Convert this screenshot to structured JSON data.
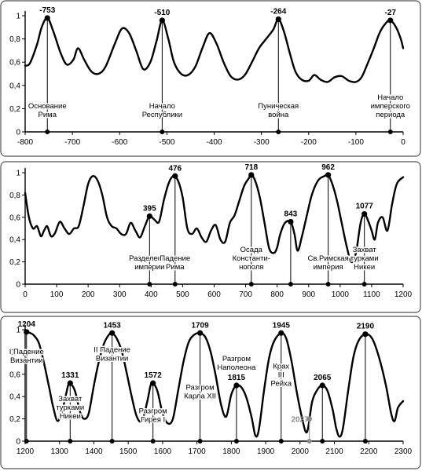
{
  "chart_data": [
    {
      "type": "line",
      "xlim": [
        -800,
        0
      ],
      "ylim": [
        0,
        1
      ],
      "xticks": [
        -800,
        -700,
        -600,
        -500,
        -400,
        -300,
        -200,
        -100,
        0
      ],
      "yticks": [
        0,
        0.2,
        0.4,
        0.6,
        0.8,
        1
      ],
      "ytick_labels": [
        "0",
        "0,2",
        "0,4",
        "0,6",
        "0,8",
        "1"
      ],
      "series": [
        {
          "x": [
            -800,
            -790,
            -775,
            -765,
            -753,
            -740,
            -725,
            -712,
            -698,
            -688,
            -675,
            -660,
            -645,
            -630,
            -610,
            -595,
            -580,
            -565,
            -550,
            -535,
            -522,
            -510,
            -497,
            -485,
            -470,
            -455,
            -440,
            -425,
            -410,
            -395,
            -380,
            -365,
            -350,
            -335,
            -320,
            -305,
            -290,
            -275,
            -264,
            -252,
            -240,
            -228,
            -215,
            -200,
            -188,
            -175,
            -160,
            -145,
            -130,
            -115,
            -100,
            -88,
            -76,
            -62,
            -50,
            -38,
            -27,
            -15,
            -5,
            0
          ],
          "y": [
            0.57,
            0.59,
            0.75,
            0.9,
            0.98,
            0.86,
            0.68,
            0.58,
            0.62,
            0.72,
            0.62,
            0.52,
            0.5,
            0.56,
            0.76,
            0.89,
            0.85,
            0.7,
            0.54,
            0.6,
            0.78,
            0.96,
            0.8,
            0.6,
            0.5,
            0.49,
            0.56,
            0.72,
            0.85,
            0.76,
            0.6,
            0.48,
            0.45,
            0.49,
            0.6,
            0.72,
            0.8,
            0.88,
            0.97,
            0.86,
            0.68,
            0.52,
            0.45,
            0.44,
            0.49,
            0.45,
            0.43,
            0.47,
            0.48,
            0.44,
            0.43,
            0.47,
            0.58,
            0.72,
            0.85,
            0.93,
            0.96,
            0.9,
            0.8,
            0.72
          ]
        }
      ],
      "peaks": [
        {
          "x": -753,
          "y": 0.98,
          "label": "-753"
        },
        {
          "x": -510,
          "y": 0.96,
          "label": "-510"
        },
        {
          "x": -264,
          "y": 0.97,
          "label": "-264"
        },
        {
          "x": -27,
          "y": 0.96,
          "label": "-27"
        }
      ],
      "events": [
        {
          "x": -753,
          "lines": [
            "Основание",
            "Рима"
          ]
        },
        {
          "x": -510,
          "lines": [
            "Начало",
            "Республики"
          ]
        },
        {
          "x": -264,
          "lines": [
            "Пуническая",
            "война"
          ]
        },
        {
          "x": -27,
          "lines": [
            "Начало",
            "имперского",
            "периода"
          ]
        }
      ]
    },
    {
      "type": "line",
      "xlim": [
        0,
        1200
      ],
      "ylim": [
        0,
        1
      ],
      "xticks": [
        0,
        100,
        200,
        300,
        400,
        500,
        600,
        700,
        800,
        900,
        1000,
        1100,
        1200
      ],
      "yticks": [
        0,
        0.2,
        0.4,
        0.6,
        0.8,
        1
      ],
      "ytick_labels": [
        "0",
        "0,2",
        "0,4",
        "0,6",
        "0,8",
        "1"
      ],
      "series": [
        {
          "x": [
            0,
            12,
            25,
            38,
            50,
            60,
            70,
            82,
            95,
            110,
            125,
            140,
            155,
            170,
            185,
            200,
            215,
            230,
            245,
            260,
            275,
            290,
            305,
            320,
            335,
            350,
            365,
            380,
            395,
            410,
            425,
            440,
            455,
            470,
            485,
            500,
            515,
            530,
            545,
            560,
            575,
            590,
            605,
            620,
            635,
            650,
            665,
            680,
            695,
            710,
            718,
            730,
            745,
            760,
            775,
            790,
            800,
            810,
            825,
            843,
            855,
            865,
            878,
            893,
            910,
            930,
            950,
            962,
            975,
            990,
            1005,
            1020,
            1035,
            1050,
            1065,
            1077,
            1090,
            1100,
            1110,
            1120,
            1135,
            1150,
            1165,
            1180,
            1200
          ],
          "y": [
            0.82,
            0.6,
            0.5,
            0.52,
            0.43,
            0.48,
            0.52,
            0.43,
            0.46,
            0.56,
            0.5,
            0.45,
            0.5,
            0.52,
            0.7,
            0.9,
            0.97,
            0.93,
            0.8,
            0.6,
            0.52,
            0.5,
            0.45,
            0.45,
            0.55,
            0.48,
            0.42,
            0.52,
            0.61,
            0.58,
            0.56,
            0.75,
            0.9,
            0.97,
            0.93,
            0.78,
            0.5,
            0.45,
            0.5,
            0.42,
            0.38,
            0.48,
            0.53,
            0.4,
            0.38,
            0.55,
            0.62,
            0.75,
            0.88,
            0.95,
            0.98,
            0.93,
            0.78,
            0.55,
            0.32,
            0.28,
            0.33,
            0.45,
            0.55,
            0.56,
            0.45,
            0.3,
            0.42,
            0.6,
            0.8,
            0.93,
            0.97,
            0.98,
            0.9,
            0.75,
            0.55,
            0.35,
            0.2,
            0.28,
            0.55,
            0.63,
            0.56,
            0.48,
            0.4,
            0.55,
            0.6,
            0.48,
            0.72,
            0.9,
            0.96
          ]
        }
      ],
      "peaks": [
        {
          "x": 395,
          "y": 0.61,
          "label": "395"
        },
        {
          "x": 476,
          "y": 0.97,
          "label": "476"
        },
        {
          "x": 718,
          "y": 0.98,
          "label": "718"
        },
        {
          "x": 843,
          "y": 0.56,
          "label": "843"
        },
        {
          "x": 962,
          "y": 0.98,
          "label": "962"
        },
        {
          "x": 1077,
          "y": 0.63,
          "label": "1077"
        }
      ],
      "events": [
        {
          "x": 395,
          "lines": [
            "Разделение",
            "империи"
          ]
        },
        {
          "x": 476,
          "lines": [
            "Падение",
            "Рима"
          ]
        },
        {
          "x": 718,
          "lines": [
            "Осада",
            "Константи-",
            "нополя"
          ]
        },
        {
          "x": 843,
          "lines": []
        },
        {
          "x": 962,
          "lines": [
            "Св.Римская",
            "империя"
          ]
        },
        {
          "x": 1077,
          "lines": [
            "Захват",
            "турками",
            "Никеи"
          ]
        }
      ]
    },
    {
      "type": "line",
      "xlim": [
        1200,
        2300
      ],
      "ylim": [
        0,
        1
      ],
      "xticks": [
        1200,
        1300,
        1400,
        1500,
        1600,
        1700,
        1800,
        1900,
        2000,
        2100,
        2200,
        2300
      ],
      "yticks": [
        0,
        0.2,
        0.4,
        0.6,
        0.8,
        1
      ],
      "ytick_labels": [
        "0",
        "0,2",
        "0,4",
        "0,6",
        "0,8",
        "1"
      ],
      "series": [
        {
          "x": [
            1200,
            1204,
            1215,
            1225,
            1240,
            1255,
            1270,
            1282,
            1295,
            1310,
            1325,
            1331,
            1345,
            1360,
            1372,
            1385,
            1400,
            1415,
            1430,
            1445,
            1453,
            1465,
            1480,
            1495,
            1510,
            1525,
            1540,
            1555,
            1565,
            1572,
            1585,
            1600,
            1615,
            1630,
            1645,
            1660,
            1675,
            1690,
            1709,
            1725,
            1740,
            1755,
            1770,
            1785,
            1800,
            1815,
            1830,
            1845,
            1860,
            1870,
            1880,
            1895,
            1910,
            1925,
            1945,
            1960,
            1975,
            1990,
            2005,
            2020,
            2035,
            2050,
            2065,
            2080,
            2095,
            2105,
            2115,
            2125,
            2140,
            2155,
            2170,
            2190,
            2210,
            2230,
            2250,
            2265,
            2275,
            2285,
            2300
          ],
          "y": [
            0.97,
            0.98,
            0.97,
            0.95,
            0.88,
            0.7,
            0.48,
            0.3,
            0.18,
            0.3,
            0.5,
            0.52,
            0.45,
            0.26,
            0.2,
            0.25,
            0.5,
            0.72,
            0.88,
            0.96,
            0.97,
            0.93,
            0.82,
            0.62,
            0.4,
            0.22,
            0.18,
            0.35,
            0.5,
            0.52,
            0.45,
            0.25,
            0.16,
            0.2,
            0.45,
            0.7,
            0.88,
            0.95,
            0.97,
            0.93,
            0.8,
            0.58,
            0.33,
            0.22,
            0.42,
            0.5,
            0.48,
            0.38,
            0.2,
            0.05,
            0.1,
            0.45,
            0.75,
            0.9,
            0.97,
            0.92,
            0.72,
            0.45,
            0.22,
            0.08,
            0.35,
            0.46,
            0.5,
            0.45,
            0.28,
            0.12,
            0.04,
            0.12,
            0.45,
            0.75,
            0.9,
            0.96,
            0.92,
            0.75,
            0.5,
            0.25,
            0.18,
            0.3,
            0.36
          ]
        }
      ],
      "peaks": [
        {
          "x": 1204,
          "y": 0.98,
          "label": "1204"
        },
        {
          "x": 1331,
          "y": 0.52,
          "label": "1331"
        },
        {
          "x": 1453,
          "y": 0.97,
          "label": "1453"
        },
        {
          "x": 1572,
          "y": 0.52,
          "label": "1572"
        },
        {
          "x": 1709,
          "y": 0.97,
          "label": "1709"
        },
        {
          "x": 1815,
          "y": 0.5,
          "label": "1815"
        },
        {
          "x": 1945,
          "y": 0.97,
          "label": "1945"
        },
        {
          "x": 2065,
          "y": 0.5,
          "label": "2065"
        },
        {
          "x": 2190,
          "y": 0.96,
          "label": "2190"
        }
      ],
      "events": [
        {
          "x": 1204,
          "lines": [
            "I Падение",
            "Византии"
          ]
        },
        {
          "x": 1331,
          "lines": [
            "Захват",
            "турками",
            "Никеи"
          ]
        },
        {
          "x": 1453,
          "lines": [
            "II Падение",
            "Византии"
          ]
        },
        {
          "x": 1572,
          "lines": [
            "Разгром",
            "Гирея I"
          ]
        },
        {
          "x": 1709,
          "lines": [
            "Разгром",
            "Карла XII"
          ]
        },
        {
          "x": 1815,
          "lines": [
            "Разгром",
            "Наполеона"
          ]
        },
        {
          "x": 1945,
          "lines": [
            "Крах",
            "III",
            "Рейха"
          ]
        }
      ],
      "projection": {
        "x": 2027,
        "y": 0.2,
        "label": "2027"
      },
      "extra_dots": [
        2065,
        2190
      ]
    }
  ]
}
